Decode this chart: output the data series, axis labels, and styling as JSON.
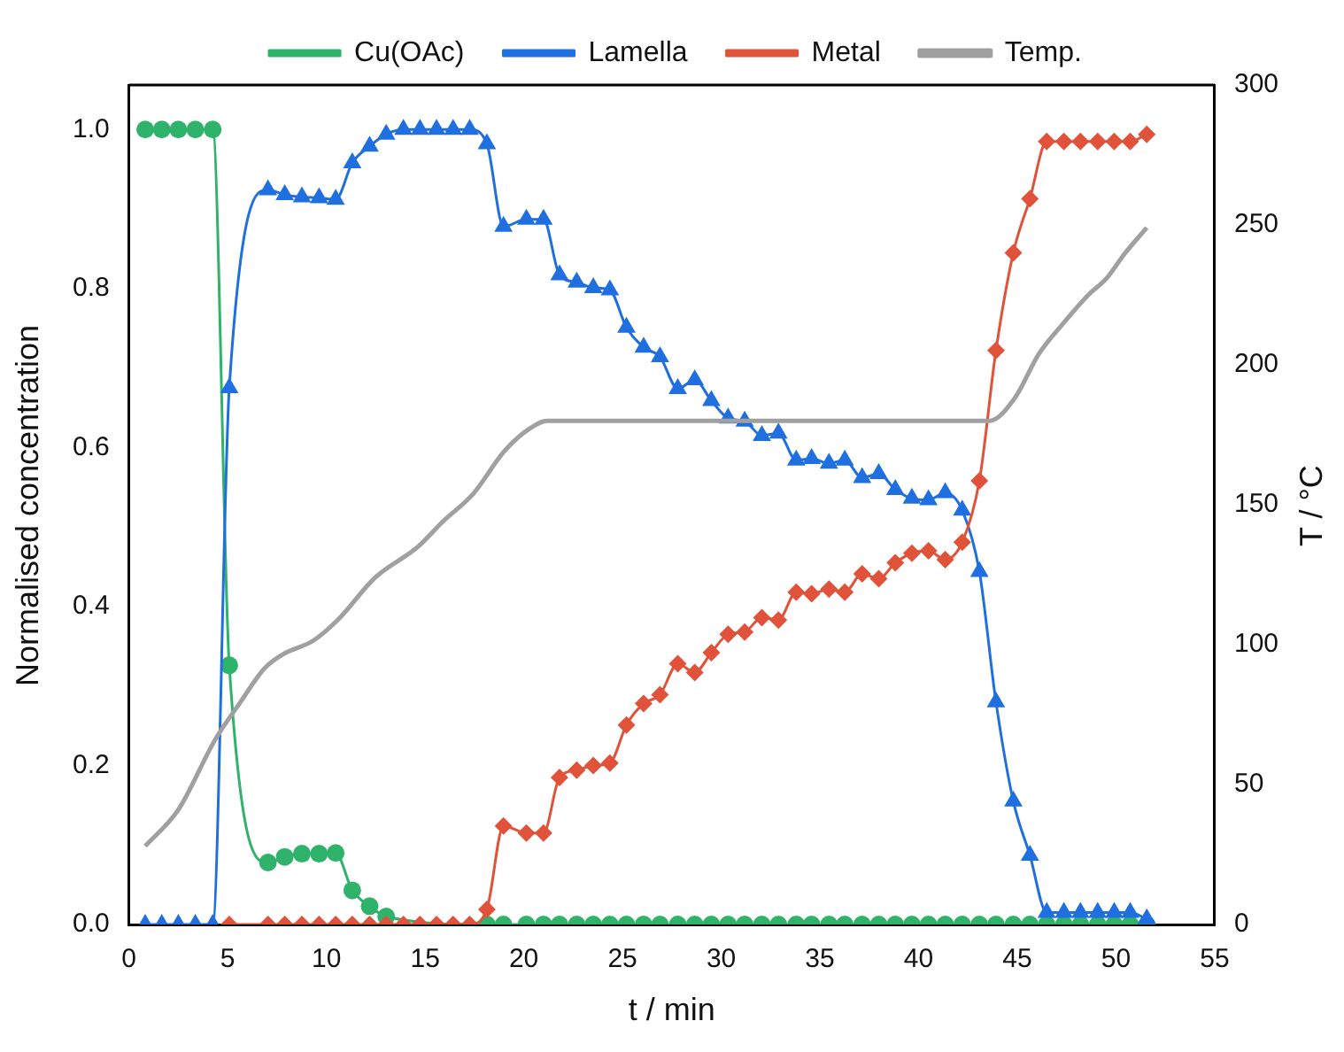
{
  "chart_data": {
    "type": "line",
    "xlabel": "t / min",
    "ylabel": "Normalised concentration",
    "y2label": "T / °C",
    "x": [
      0.82,
      1.66,
      2.5,
      3.36,
      4.24,
      5.08,
      7.04,
      7.89,
      8.76,
      9.63,
      10.47,
      11.31,
      12.19,
      13.03,
      13.9,
      14.74,
      15.58,
      16.42,
      17.26,
      18.13,
      18.97,
      20.13,
      21.0,
      21.81,
      22.68,
      23.52,
      24.36,
      25.2,
      26.07,
      26.9,
      27.8,
      28.66,
      29.5,
      30.35,
      31.19,
      32.06,
      32.9,
      33.8,
      34.58,
      35.46,
      36.26,
      37.14,
      37.98,
      38.82,
      39.66,
      40.5,
      41.35,
      42.21,
      43.08,
      43.92,
      44.8,
      45.64,
      46.49,
      47.36,
      48.2,
      49.07,
      49.91,
      50.72,
      51.56
    ],
    "series": [
      {
        "name": "Cu(OAc)",
        "color": "#2fb36b",
        "marker": "circle",
        "values": [
          1.0,
          1.0,
          1.0,
          1.0,
          1.0,
          0.326,
          0.078,
          0.085,
          0.089,
          0.089,
          0.09,
          0.043,
          0.023,
          0.01,
          null,
          null,
          null,
          null,
          null,
          0,
          0,
          0,
          0,
          0,
          0,
          0,
          0,
          0,
          0,
          0,
          0,
          0,
          0,
          0,
          0,
          0,
          0,
          0,
          0,
          0,
          0,
          0,
          0,
          0,
          0,
          0,
          0,
          0,
          0,
          0,
          0,
          0,
          0,
          0,
          0,
          0,
          0,
          0,
          0
        ]
      },
      {
        "name": "Lamella",
        "color": "#1f6fe0",
        "marker": "triangle",
        "values": [
          0,
          0,
          0,
          0,
          0,
          0.675,
          0.924,
          0.918,
          0.915,
          0.914,
          0.912,
          0.958,
          0.979,
          0.994,
          1.0,
          1.0,
          1.0,
          1.0,
          1.0,
          0.982,
          0.878,
          0.887,
          0.887,
          0.817,
          0.808,
          0.801,
          0.798,
          0.751,
          0.726,
          0.714,
          0.674,
          0.685,
          0.659,
          0.637,
          0.633,
          0.615,
          0.618,
          0.584,
          0.586,
          0.58,
          0.584,
          0.562,
          0.567,
          0.547,
          0.536,
          0.534,
          0.543,
          0.521,
          0.444,
          0.28,
          0.155,
          0.087,
          0.015,
          0.015,
          0.015,
          0.015,
          0.015,
          0.015,
          0.007
        ]
      },
      {
        "name": "Metal",
        "color": "#e0533a",
        "marker": "diamond",
        "values": [
          null,
          null,
          null,
          null,
          null,
          0,
          0,
          0,
          0,
          0,
          0,
          0,
          0,
          0,
          0,
          0,
          0,
          0,
          0,
          0.019,
          0.124,
          0.115,
          0.115,
          0.185,
          0.194,
          0.2,
          0.203,
          0.251,
          0.278,
          0.289,
          0.328,
          0.317,
          0.342,
          0.365,
          0.368,
          0.386,
          0.383,
          0.418,
          0.416,
          0.422,
          0.418,
          0.441,
          0.435,
          0.455,
          0.467,
          0.47,
          0.459,
          0.481,
          0.558,
          0.722,
          0.845,
          0.913,
          0.985,
          0.985,
          0.985,
          0.985,
          0.985,
          0.985,
          0.994
        ]
      },
      {
        "name": "Temp.",
        "color": "#a0a0a0",
        "marker": "none",
        "axis": "y2",
        "x": [
          0.82,
          2.5,
          4.36,
          5.6,
          6.86,
          7.79,
          9.35,
          10.6,
          12.47,
          14.64,
          15.9,
          17.45,
          19.0,
          20.25,
          21.2,
          43.6,
          44.86,
          46.1,
          47.35,
          48.6,
          49.53,
          50.47,
          51.56
        ],
        "values": [
          28,
          41,
          66,
          79,
          91.5,
          96.5,
          101.5,
          109,
          124,
          135,
          144,
          154,
          169,
          177,
          180,
          180,
          188,
          204,
          215,
          225,
          231,
          240,
          249
        ]
      }
    ],
    "xlim": [
      0,
      55
    ],
    "xticks": [
      0,
      5,
      10,
      15,
      20,
      25,
      30,
      35,
      40,
      45,
      50,
      55
    ],
    "ylim": [
      0,
      1.056
    ],
    "yticks": [
      {
        "value": 0,
        "label": "0.0"
      },
      {
        "value": 0.2,
        "label": "0.2"
      },
      {
        "value": 0.4,
        "label": "0.4"
      },
      {
        "value": 0.6,
        "label": "0.6"
      },
      {
        "value": 0.8,
        "label": "0.8"
      },
      {
        "value": 1.0,
        "label": "1.0"
      }
    ],
    "y2lim": [
      0,
      300
    ],
    "y2ticks": [
      0,
      50,
      100,
      150,
      200,
      250,
      300
    ],
    "legend": "top",
    "grid": false
  }
}
